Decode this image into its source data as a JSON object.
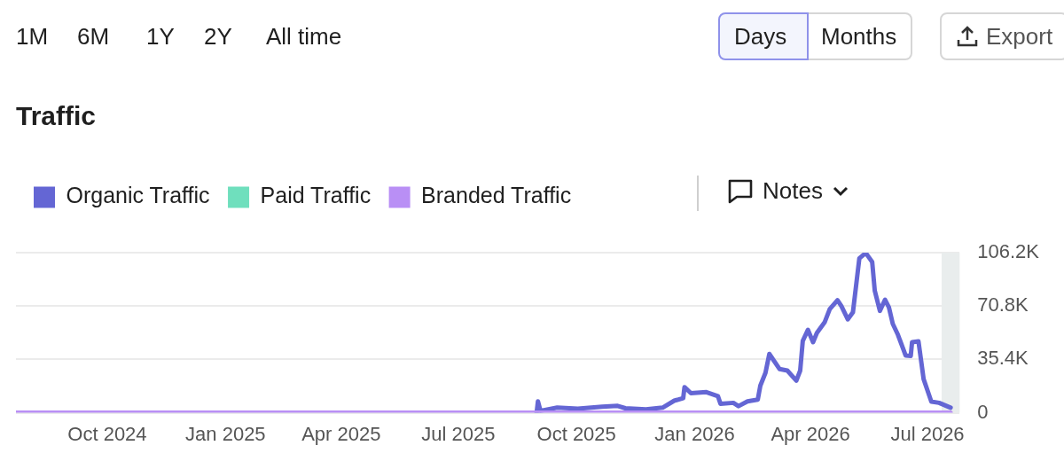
{
  "chart_data": {
    "type": "line",
    "title": "Traffic",
    "xlim": [
      "2024-07-22",
      "2026-07-26"
    ],
    "xticks": [
      {
        "value": "2024-10-01",
        "label": "Oct 2024"
      },
      {
        "value": "2025-01-01",
        "label": "Jan 2025"
      },
      {
        "value": "2025-04-01",
        "label": "Apr 2025"
      },
      {
        "value": "2025-07-01",
        "label": "Jul 2025"
      },
      {
        "value": "2025-10-01",
        "label": "Oct 2025"
      },
      {
        "value": "2026-01-01",
        "label": "Jan 2026"
      },
      {
        "value": "2026-04-01",
        "label": "Apr 2026"
      },
      {
        "value": "2026-07-01",
        "label": "Jul 2026"
      }
    ],
    "ylim": [
      0,
      106200
    ],
    "yticks": [
      0,
      {
        "value": 35400,
        "label": "35.4K"
      },
      {
        "value": 70800,
        "label": "70.8K"
      },
      {
        "value": 106200,
        "label": "106.2K"
      }
    ],
    "grid": "y",
    "legend": "top left",
    "marker": "none",
    "line_style": "solid",
    "bands": [
      {
        "axis": "x",
        "from": "2026-07-12",
        "to": "2026-07-26",
        "color": "#e9eded"
      }
    ],
    "annotations": [
      "1M",
      "6M",
      "1Y",
      "2Y",
      "All time",
      "Days",
      "Months",
      "Export",
      "Notes"
    ],
    "series": [
      {
        "name": "Organic Traffic",
        "color": "#6466d4",
        "x": [
          "2025-08-31",
          "2025-09-01",
          "2025-09-03",
          "2025-09-16",
          "2025-10-02",
          "2025-10-21",
          "2025-11-02",
          "2025-11-08",
          "2025-11-24",
          "2025-12-07",
          "2025-12-16",
          "2025-12-23",
          "2025-12-24",
          "2025-12-29",
          "2026-01-10",
          "2026-01-19",
          "2026-01-21",
          "2026-01-31",
          "2026-02-04",
          "2026-02-11",
          "2026-02-19",
          "2026-02-21",
          "2026-02-25",
          "2026-02-28",
          "2026-03-08",
          "2026-03-14",
          "2026-03-21",
          "2026-03-24",
          "2026-03-26",
          "2026-03-30",
          "2026-04-03",
          "2026-04-06",
          "2026-04-12",
          "2026-04-16",
          "2026-04-22",
          "2026-04-25",
          "2026-04-30",
          "2026-05-04",
          "2026-05-09",
          "2026-05-14",
          "2026-05-19",
          "2026-05-21",
          "2026-05-25",
          "2026-05-29",
          "2026-06-01",
          "2026-06-04",
          "2026-06-08",
          "2026-06-14",
          "2026-06-18",
          "2026-06-19",
          "2026-06-24",
          "2026-06-28",
          "2026-07-04",
          "2026-07-10",
          "2026-07-19"
        ],
        "values": [
          0,
          7600,
          1300,
          3400,
          2700,
          4000,
          4600,
          3000,
          2300,
          3400,
          8000,
          9700,
          17000,
          13000,
          13700,
          11000,
          6000,
          6600,
          4400,
          7600,
          8700,
          18000,
          26500,
          39000,
          29000,
          28000,
          21300,
          28000,
          47600,
          55000,
          46800,
          53000,
          60000,
          68800,
          74700,
          70800,
          62000,
          66600,
          102400,
          106000,
          100000,
          81000,
          67600,
          75000,
          70000,
          59000,
          51800,
          38000,
          37700,
          46800,
          47400,
          22300,
          7400,
          6600,
          3400
        ]
      },
      {
        "name": "Paid Traffic",
        "color": "#6fdfbd"
      },
      {
        "name": "Branded Traffic",
        "color": "#b98ff5",
        "x": [
          "2024-07-22",
          "2026-07-19"
        ],
        "values": [
          0,
          0
        ]
      }
    ]
  }
}
